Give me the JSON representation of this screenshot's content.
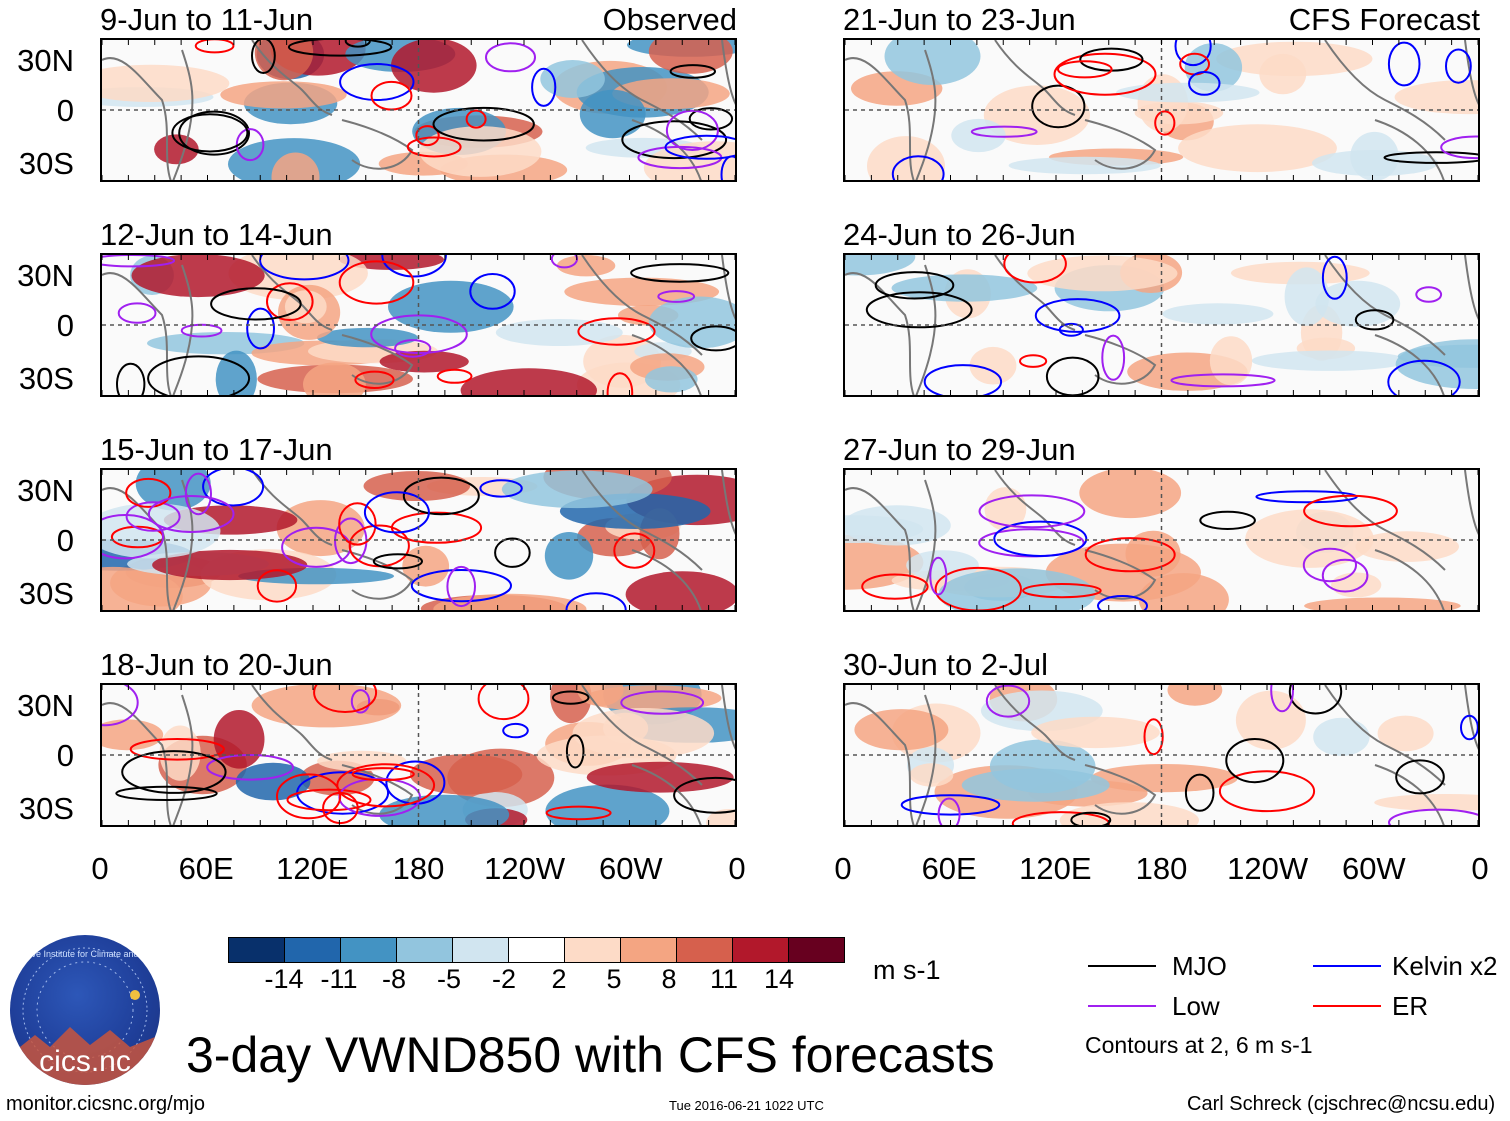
{
  "page": {
    "title": "3-day VWND850 with CFS forecasts",
    "units": "m s-1",
    "footer_left": "monitor.cicsnc.org/mjo",
    "footer_center": "Tue 2016-06-21 1022 UTC",
    "footer_right": "Carl Schreck (cjschrec@ncsu.edu)",
    "contours_note": "Contours at 2, 6 m s-1",
    "logo_text": "cics.nc",
    "logo_ring_text": "Cooperative Institute for Climate and Satellites"
  },
  "panels": {
    "left": [
      {
        "title": "9-Jun to 11-Jun",
        "tag": "Observed"
      },
      {
        "title": "12-Jun to 14-Jun",
        "tag": ""
      },
      {
        "title": "15-Jun to 17-Jun",
        "tag": ""
      },
      {
        "title": "18-Jun to 20-Jun",
        "tag": ""
      }
    ],
    "right": [
      {
        "title": "21-Jun to 23-Jun",
        "tag": "CFS Forecast"
      },
      {
        "title": "24-Jun to 26-Jun",
        "tag": ""
      },
      {
        "title": "27-Jun to 29-Jun",
        "tag": ""
      },
      {
        "title": "30-Jun to 2-Jul",
        "tag": ""
      }
    ]
  },
  "axes": {
    "lat_ticks": [
      "30N",
      "0",
      "30S"
    ],
    "lon_ticks": [
      "0",
      "60E",
      "120E",
      "180",
      "120W",
      "60W",
      "0"
    ]
  },
  "colorbar": {
    "labels": [
      "-14",
      "-11",
      "-8",
      "-5",
      "-2",
      "2",
      "5",
      "8",
      "11",
      "14"
    ],
    "colors": [
      "#08306b",
      "#2166ac",
      "#4393c3",
      "#92c5de",
      "#d1e5f0",
      "#ffffff",
      "#fddbc7",
      "#f4a582",
      "#d6604d",
      "#b2182b",
      "#67001f"
    ]
  },
  "legend": {
    "items": [
      {
        "label": "MJO",
        "color": "#000000"
      },
      {
        "label": "Kelvin x2",
        "color": "#0000ff"
      },
      {
        "label": "Low",
        "color": "#a020f0"
      },
      {
        "label": "ER",
        "color": "#ff0000"
      }
    ]
  },
  "chart_data": {
    "type": "heatmap",
    "title": "3-day VWND850 with CFS forecasts",
    "variable": "850-hPa meridional wind anomaly",
    "units": "m s-1",
    "contour_levels": [
      2,
      6
    ],
    "x": [
      "0",
      "60E",
      "120E",
      "180",
      "120W",
      "60W",
      "0"
    ],
    "y": [
      "30N",
      "0",
      "30S"
    ],
    "color_levels": [
      -14,
      -11,
      -8,
      -5,
      -2,
      2,
      5,
      8,
      11,
      14
    ],
    "series": [
      {
        "name": "MJO",
        "color": "#000000"
      },
      {
        "name": "Kelvin x2",
        "color": "#0000ff"
      },
      {
        "name": "Low",
        "color": "#a020f0"
      },
      {
        "name": "ER",
        "color": "#ff0000"
      }
    ],
    "panels": [
      {
        "period": "9-Jun to 11-Jun",
        "source": "Observed"
      },
      {
        "period": "12-Jun to 14-Jun",
        "source": "Observed"
      },
      {
        "period": "15-Jun to 17-Jun",
        "source": "Observed"
      },
      {
        "period": "18-Jun to 20-Jun",
        "source": "Observed"
      },
      {
        "period": "21-Jun to 23-Jun",
        "source": "CFS Forecast"
      },
      {
        "period": "24-Jun to 26-Jun",
        "source": "CFS Forecast"
      },
      {
        "period": "27-Jun to 29-Jun",
        "source": "CFS Forecast"
      },
      {
        "period": "30-Jun to 2-Jul",
        "source": "CFS Forecast"
      }
    ]
  }
}
